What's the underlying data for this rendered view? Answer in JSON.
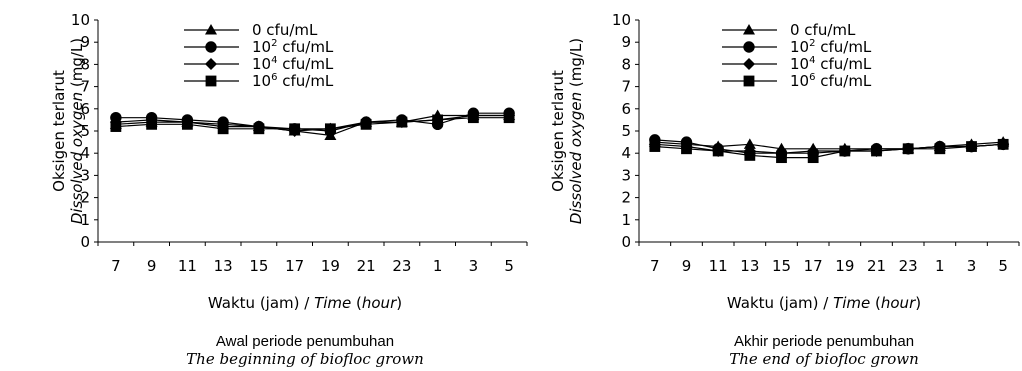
{
  "charts": [
    {
      "type": "line",
      "ylabel_id": "Oksigen terlarut",
      "ylabel_en": "Dissolved oxygen",
      "ylabel_unit": "(mg/L)",
      "xlabel_id": "Waktu (jam) / ",
      "xlabel_en1": "Time",
      "xlabel_mid": " (",
      "xlabel_en2": "hour",
      "xlabel_end": ")",
      "caption_id": "Awal periode penumbuhan",
      "caption_en": "The beginning of biofloc grown",
      "yticks": [
        "0",
        "1",
        "2",
        "3",
        "4",
        "5",
        "6",
        "7",
        "8",
        "9",
        "10"
      ],
      "categories": [
        "7",
        "9",
        "11",
        "13",
        "15",
        "17",
        "19",
        "21",
        "23",
        "1",
        "3",
        "5"
      ],
      "legend": [
        {
          "base": "0 cfu/mL",
          "pre": "",
          "sup": "",
          "post": "",
          "marker": "triangle"
        },
        {
          "base": "",
          "pre": "10",
          "sup": "2",
          "post": " cfu/mL",
          "marker": "circle"
        },
        {
          "base": "",
          "pre": "10",
          "sup": "4",
          "post": " cfu/mL",
          "marker": "diamond"
        },
        {
          "base": "",
          "pre": "10",
          "sup": "6",
          "post": " cfu/mL",
          "marker": "square"
        }
      ]
    },
    {
      "type": "line",
      "ylabel_id": "Oksigen terlarut",
      "ylabel_en": "Dissolved oxygen",
      "ylabel_unit": "(mg/L)",
      "xlabel_id": "Waktu (jam) / ",
      "xlabel_en1": "Time",
      "xlabel_mid": " (",
      "xlabel_en2": "hour",
      "xlabel_end": ")",
      "caption_id": "Akhir periode penumbuhan",
      "caption_en": "The end of biofloc grown",
      "yticks": [
        "0",
        "1",
        "2",
        "3",
        "4",
        "5",
        "6",
        "7",
        "8",
        "9",
        "10"
      ],
      "categories": [
        "7",
        "9",
        "11",
        "13",
        "15",
        "17",
        "19",
        "21",
        "23",
        "1",
        "3",
        "5"
      ],
      "legend": [
        {
          "base": "0 cfu/mL",
          "pre": "",
          "sup": "",
          "post": "",
          "marker": "triangle"
        },
        {
          "base": "",
          "pre": "10",
          "sup": "2",
          "post": " cfu/mL",
          "marker": "circle"
        },
        {
          "base": "",
          "pre": "10",
          "sup": "4",
          "post": " cfu/mL",
          "marker": "diamond"
        },
        {
          "base": "",
          "pre": "10",
          "sup": "6",
          "post": " cfu/mL",
          "marker": "square"
        }
      ]
    }
  ],
  "chart_data": [
    {
      "type": "line",
      "ylabel": "Oksigen terlarut / Dissolved oxygen (mg/L)",
      "xlabel": "Waktu (jam) / Time (hour)",
      "title": "Awal periode penumbuhan / The beginning of biofloc grown",
      "ylim": [
        0,
        10
      ],
      "categories": [
        "7",
        "9",
        "11",
        "13",
        "15",
        "17",
        "19",
        "21",
        "23",
        "1",
        "3",
        "5"
      ],
      "series": [
        {
          "name": "0 cfu/mL",
          "marker": "triangle",
          "values": [
            5.3,
            5.4,
            5.4,
            5.3,
            5.2,
            5.0,
            4.8,
            5.4,
            5.4,
            5.7,
            5.7,
            5.7
          ]
        },
        {
          "name": "10^2 cfu/mL",
          "marker": "circle",
          "values": [
            5.6,
            5.6,
            5.5,
            5.4,
            5.2,
            5.1,
            5.0,
            5.4,
            5.5,
            5.3,
            5.8,
            5.8
          ]
        },
        {
          "name": "10^4 cfu/mL",
          "marker": "diamond",
          "values": [
            5.4,
            5.5,
            5.4,
            5.2,
            5.2,
            5.0,
            5.1,
            5.4,
            5.4,
            5.5,
            5.7,
            5.7
          ]
        },
        {
          "name": "10^6 cfu/mL",
          "marker": "square",
          "values": [
            5.2,
            5.3,
            5.3,
            5.1,
            5.1,
            5.1,
            5.1,
            5.3,
            5.4,
            5.5,
            5.6,
            5.6
          ]
        }
      ]
    },
    {
      "type": "line",
      "ylabel": "Oksigen terlarut / Dissolved oxygen (mg/L)",
      "xlabel": "Waktu (jam) / Time (hour)",
      "title": "Akhir periode penumbuhan / The end of biofloc grown",
      "ylim": [
        0,
        10
      ],
      "categories": [
        "7",
        "9",
        "11",
        "13",
        "15",
        "17",
        "19",
        "21",
        "23",
        "1",
        "3",
        "5"
      ],
      "series": [
        {
          "name": "0 cfu/mL",
          "marker": "triangle",
          "values": [
            4.5,
            4.4,
            4.3,
            4.4,
            4.2,
            4.2,
            4.2,
            4.2,
            4.2,
            4.3,
            4.4,
            4.5
          ]
        },
        {
          "name": "10^2 cfu/mL",
          "marker": "circle",
          "values": [
            4.6,
            4.5,
            4.2,
            4.0,
            4.0,
            4.0,
            4.1,
            4.2,
            4.2,
            4.3,
            4.3,
            4.4
          ]
        },
        {
          "name": "10^4 cfu/mL",
          "marker": "diamond",
          "values": [
            4.4,
            4.3,
            4.1,
            4.1,
            4.0,
            4.1,
            4.1,
            4.1,
            4.2,
            4.3,
            4.3,
            4.4
          ]
        },
        {
          "name": "10^6 cfu/mL",
          "marker": "square",
          "values": [
            4.3,
            4.2,
            4.1,
            3.9,
            3.8,
            3.8,
            4.1,
            4.1,
            4.2,
            4.2,
            4.3,
            4.4
          ]
        }
      ]
    }
  ]
}
